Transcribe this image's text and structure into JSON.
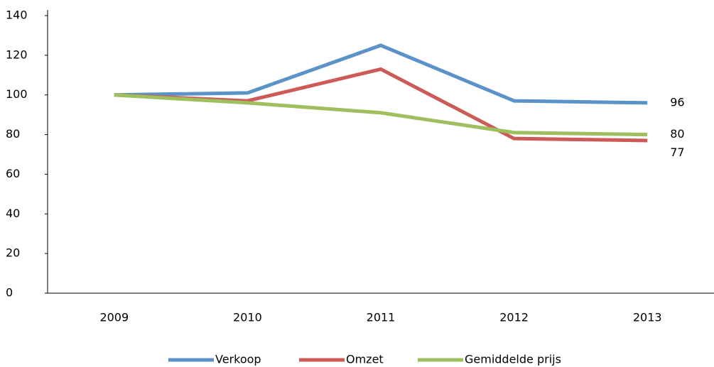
{
  "chart_data": {
    "type": "line",
    "categories": [
      "2009",
      "2010",
      "2011",
      "2012",
      "2013"
    ],
    "series": [
      {
        "name": "Verkoop",
        "color": "#5b93c9",
        "values": [
          100,
          101,
          125,
          97,
          96
        ]
      },
      {
        "name": "Omzet",
        "color": "#cc5b57",
        "values": [
          100,
          97,
          113,
          78,
          77
        ]
      },
      {
        "name": "Gemiddelde prijs",
        "color": "#9ebf5e",
        "values": [
          100,
          96,
          91,
          81,
          80
        ]
      }
    ],
    "ylim": [
      0,
      140
    ],
    "yticks": [
      0,
      20,
      40,
      60,
      80,
      100,
      120,
      140
    ],
    "grid": false,
    "legend": "bottom"
  }
}
